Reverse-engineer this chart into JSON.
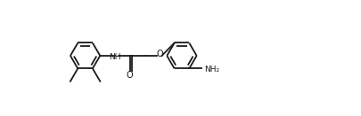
{
  "bg_color": "#ffffff",
  "line_color": "#1a1a1a",
  "nh_color": "#1a1a1a",
  "o_color": "#1a1a1a",
  "nh2_color": "#1a1a1a",
  "line_width": 1.3,
  "figsize": [
    4.06,
    1.31
  ],
  "dpi": 100,
  "s": 0.52,
  "xlim": [
    -0.5,
    9.5
  ],
  "ylim": [
    -1.8,
    2.2
  ]
}
